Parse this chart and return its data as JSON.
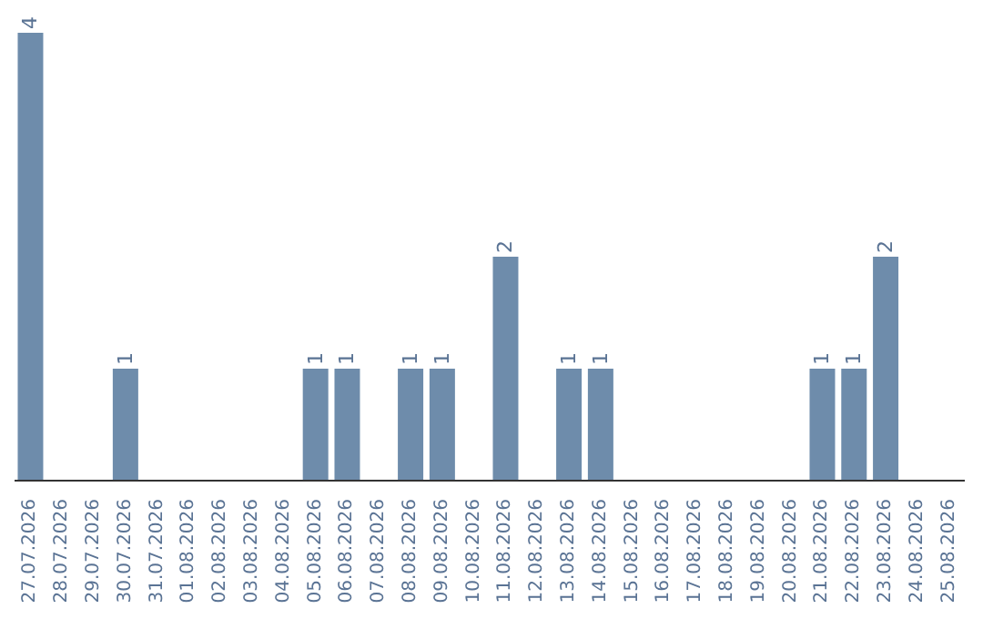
{
  "chart_data": {
    "type": "bar",
    "categories": [
      "27.07.2026",
      "28.07.2026",
      "29.07.2026",
      "30.07.2026",
      "31.07.2026",
      "01.08.2026",
      "02.08.2026",
      "03.08.2026",
      "04.08.2026",
      "05.08.2026",
      "06.08.2026",
      "07.08.2026",
      "08.08.2026",
      "09.08.2026",
      "10.08.2026",
      "11.08.2026",
      "12.08.2026",
      "13.08.2026",
      "14.08.2026",
      "15.08.2026",
      "16.08.2026",
      "17.08.2026",
      "18.08.2026",
      "19.08.2026",
      "20.08.2026",
      "21.08.2026",
      "22.08.2026",
      "23.08.2026",
      "24.08.2026",
      "25.08.2026"
    ],
    "values": [
      4,
      0,
      0,
      1,
      0,
      0,
      0,
      0,
      0,
      1,
      1,
      0,
      1,
      1,
      0,
      2,
      0,
      1,
      1,
      0,
      0,
      0,
      0,
      0,
      0,
      1,
      1,
      2,
      0,
      0
    ],
    "value_labels": [
      "4",
      null,
      null,
      "1",
      null,
      null,
      null,
      null,
      null,
      "1",
      "1",
      null,
      "1",
      "1",
      null,
      "2",
      null,
      "1",
      "1",
      null,
      null,
      null,
      null,
      null,
      null,
      "1",
      "1",
      "2",
      null,
      null
    ],
    "color": "#6e8cab",
    "grid": false,
    "legend": false,
    "tick_labels": "x"
  }
}
